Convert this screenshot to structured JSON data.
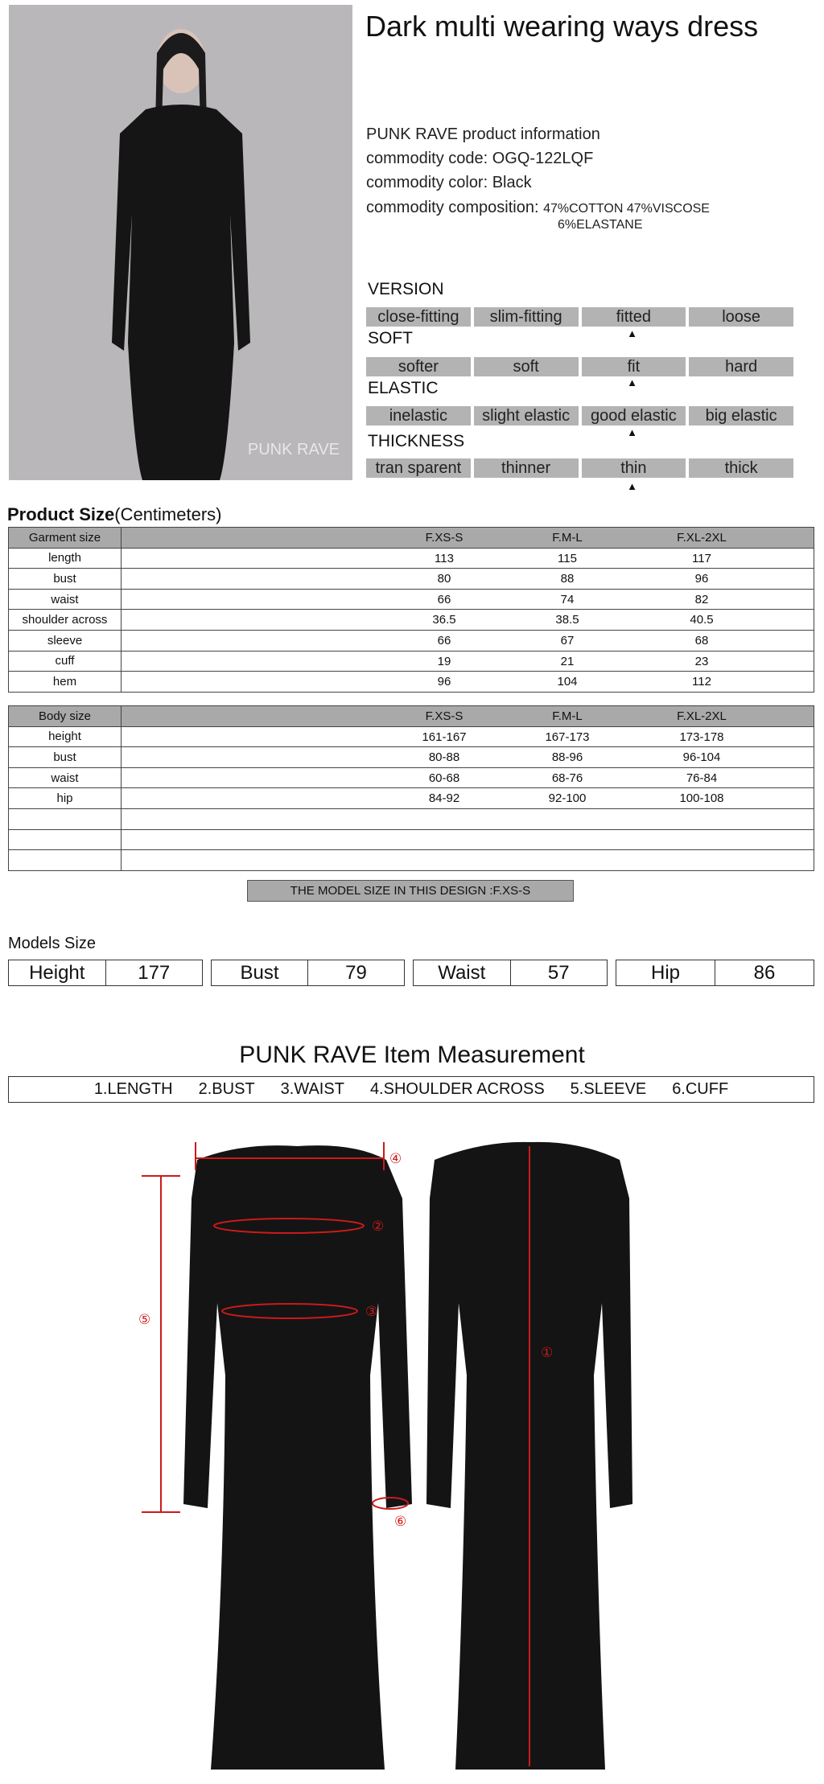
{
  "title": "Dark multi wearing ways dress",
  "photo": {
    "watermark": "PUNK RAVE"
  },
  "info": {
    "heading": "PUNK RAVE product information",
    "code_label": "commodity code:",
    "code": "OGQ-122LQF",
    "color_label": "commodity color:",
    "color": "Black",
    "composition_label": "commodity composition:",
    "composition_line1": "47%COTTON 47%VISCOSE",
    "composition_line2": "6%ELASTANE"
  },
  "attributes": [
    {
      "label": "VERSION",
      "options": [
        "close-fitting",
        "slim-fitting",
        "fitted",
        "loose"
      ],
      "selected_index": 2
    },
    {
      "label": "SOFT",
      "options": [
        "softer",
        "soft",
        "fit",
        "hard"
      ],
      "selected_index": 2
    },
    {
      "label": "ELASTIC",
      "options": [
        "inelastic",
        "slight elastic",
        "good elastic",
        "big elastic"
      ],
      "selected_index": 2
    },
    {
      "label": "THICKNESS",
      "options": [
        "tran sparent",
        "thinner",
        "thin",
        "thick"
      ],
      "selected_index": 2
    }
  ],
  "product_size": {
    "title": "Product Size",
    "unit": "(Centimeters)",
    "garment": {
      "header": [
        "Garment size",
        "F.XS-S",
        "F.M-L",
        "F.XL-2XL"
      ],
      "rows": [
        [
          "length",
          "113",
          "115",
          "117"
        ],
        [
          "bust",
          "80",
          "88",
          "96"
        ],
        [
          "waist",
          "66",
          "74",
          "82"
        ],
        [
          "shoulder across",
          "36.5",
          "38.5",
          "40.5"
        ],
        [
          "sleeve",
          "66",
          "67",
          "68"
        ],
        [
          "cuff",
          "19",
          "21",
          "23"
        ],
        [
          "hem",
          "96",
          "104",
          "112"
        ]
      ]
    },
    "body": {
      "header": [
        "Body size",
        "F.XS-S",
        "F.M-L",
        "F.XL-2XL"
      ],
      "rows": [
        [
          "height",
          "161-167",
          "167-173",
          "173-178"
        ],
        [
          "bust",
          "80-88",
          "88-96",
          "96-104"
        ],
        [
          "waist",
          "60-68",
          "68-76",
          "76-84"
        ],
        [
          "hip",
          "84-92",
          "92-100",
          "100-108"
        ],
        [
          "",
          "",
          "",
          ""
        ],
        [
          "",
          "",
          "",
          ""
        ],
        [
          "",
          "",
          "",
          ""
        ]
      ]
    },
    "model_note": "THE MODEL SIZE IN THIS DESIGN :F.XS-S"
  },
  "models_size": {
    "label": "Models Size",
    "items": [
      {
        "k": "Height",
        "v": "177"
      },
      {
        "k": "Bust",
        "v": "79"
      },
      {
        "k": "Waist",
        "v": "57"
      },
      {
        "k": "Hip",
        "v": "86"
      }
    ]
  },
  "measurement": {
    "title": "PUNK RAVE Item  Measurement",
    "items": [
      "1.LENGTH",
      "2.BUST",
      "3.WAIST",
      "4.SHOULDER ACROSS",
      "5.SLEEVE",
      "6.CUFF"
    ],
    "markers": [
      "①",
      "②",
      "③",
      "④",
      "⑤",
      "⑥"
    ],
    "marker_color": "#cc1a1a"
  }
}
